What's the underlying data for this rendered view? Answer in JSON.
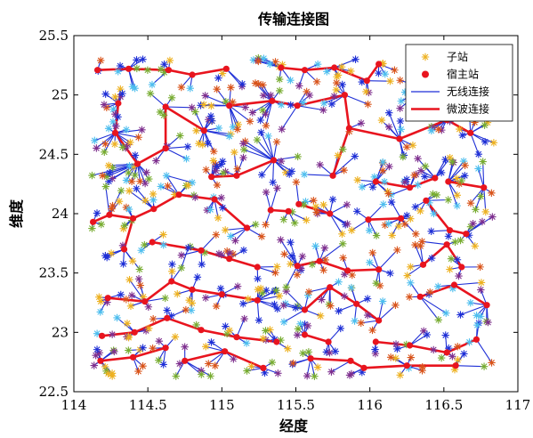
{
  "chart_data": {
    "type": "scatter",
    "title": "传输连接图",
    "xlabel": "经度",
    "ylabel": "维度",
    "xlim": [
      114,
      117
    ],
    "ylim": [
      22.5,
      25.5
    ],
    "xticks": [
      114,
      114.5,
      115,
      115.5,
      116,
      116.5,
      117
    ],
    "xtick_labels": [
      "114",
      "114.5",
      "115",
      "115.5",
      "116",
      "116.5",
      "117"
    ],
    "yticks": [
      22.5,
      23,
      23.5,
      24,
      24.5,
      25,
      25.5
    ],
    "ytick_labels": [
      "22.5",
      "23",
      "23.5",
      "24",
      "24.5",
      "25",
      "25.5"
    ],
    "legend": {
      "placement": "top-right",
      "entries": [
        {
          "label": "子站",
          "marker": "asterisk",
          "color": "#EDB120"
        },
        {
          "label": "宿主站",
          "marker": "dot",
          "color": "#E8141E"
        },
        {
          "label": "无线连接",
          "marker": "line",
          "color": "#1E2FD6"
        },
        {
          "label": "微波连接",
          "marker": "line",
          "color": "#E8141E"
        }
      ]
    },
    "colors": {
      "substation_palette": [
        "#EDB120",
        "#1E2FD6",
        "#7E2F8E",
        "#77AC30",
        "#4DBEEE",
        "#D95319"
      ],
      "host": "#E8141E",
      "wireless": "#1E2FD6",
      "microwave": "#E8141E"
    },
    "series": [
      {
        "name": "宿主站",
        "points": [
          [
            114.16,
            25.21
          ],
          [
            114.37,
            25.22
          ],
          [
            114.64,
            25.21
          ],
          [
            114.8,
            25.17
          ],
          [
            115.03,
            25.22
          ],
          [
            115.4,
            25.23
          ],
          [
            115.56,
            25.21
          ],
          [
            115.76,
            25.23
          ],
          [
            115.98,
            25.12
          ],
          [
            116.06,
            25.26
          ],
          [
            116.37,
            25.06
          ],
          [
            116.64,
            25.16
          ],
          [
            114.3,
            24.93
          ],
          [
            114.62,
            24.9
          ],
          [
            114.88,
            24.7
          ],
          [
            115.05,
            24.91
          ],
          [
            115.34,
            24.95
          ],
          [
            115.51,
            24.91
          ],
          [
            115.83,
            25.0
          ],
          [
            115.86,
            24.72
          ],
          [
            116.2,
            24.63
          ],
          [
            116.52,
            24.79
          ],
          [
            116.68,
            24.68
          ],
          [
            114.28,
            24.68
          ],
          [
            114.43,
            24.42
          ],
          [
            114.62,
            24.55
          ],
          [
            114.93,
            24.31
          ],
          [
            115.1,
            24.32
          ],
          [
            115.35,
            24.45
          ],
          [
            115.75,
            24.32
          ],
          [
            116.04,
            24.27
          ],
          [
            116.27,
            24.22
          ],
          [
            116.44,
            24.3
          ],
          [
            116.53,
            24.27
          ],
          [
            116.77,
            24.22
          ],
          [
            114.13,
            23.93
          ],
          [
            114.24,
            23.99
          ],
          [
            114.4,
            23.96
          ],
          [
            114.54,
            24.04
          ],
          [
            114.71,
            24.16
          ],
          [
            114.95,
            24.12
          ],
          [
            115.17,
            23.88
          ],
          [
            115.33,
            24.03
          ],
          [
            115.45,
            24.02
          ],
          [
            115.52,
            24.08
          ],
          [
            115.73,
            24.0
          ],
          [
            115.99,
            23.95
          ],
          [
            116.21,
            23.96
          ],
          [
            116.38,
            24.11
          ],
          [
            116.54,
            23.86
          ],
          [
            116.65,
            23.83
          ],
          [
            114.34,
            23.7
          ],
          [
            114.53,
            23.76
          ],
          [
            114.86,
            23.69
          ],
          [
            115.05,
            23.62
          ],
          [
            115.24,
            23.55
          ],
          [
            115.51,
            23.56
          ],
          [
            115.66,
            23.6
          ],
          [
            115.85,
            23.52
          ],
          [
            116.06,
            23.53
          ],
          [
            116.36,
            23.57
          ],
          [
            116.52,
            23.74
          ],
          [
            116.62,
            23.55
          ],
          [
            114.23,
            23.29
          ],
          [
            114.48,
            23.26
          ],
          [
            114.66,
            23.43
          ],
          [
            114.8,
            23.36
          ],
          [
            115.0,
            23.32
          ],
          [
            115.24,
            23.27
          ],
          [
            115.56,
            23.19
          ],
          [
            115.73,
            23.38
          ],
          [
            115.91,
            23.24
          ],
          [
            116.06,
            23.1
          ],
          [
            116.34,
            23.3
          ],
          [
            116.57,
            23.4
          ],
          [
            116.79,
            23.23
          ],
          [
            114.19,
            22.97
          ],
          [
            114.41,
            23.0
          ],
          [
            114.63,
            23.12
          ],
          [
            114.86,
            23.02
          ],
          [
            115.1,
            22.96
          ],
          [
            115.37,
            22.92
          ],
          [
            115.56,
            22.98
          ],
          [
            115.72,
            22.92
          ],
          [
            116.04,
            22.92
          ],
          [
            116.27,
            22.89
          ],
          [
            116.52,
            22.83
          ],
          [
            116.72,
            22.94
          ],
          [
            114.18,
            22.76
          ],
          [
            114.4,
            22.79
          ],
          [
            114.62,
            22.87
          ],
          [
            114.75,
            22.76
          ],
          [
            115.02,
            22.84
          ],
          [
            115.28,
            22.7
          ],
          [
            115.6,
            22.78
          ],
          [
            115.87,
            22.76
          ],
          [
            115.96,
            22.7
          ],
          [
            116.25,
            22.72
          ],
          [
            116.58,
            22.72
          ]
        ]
      }
    ],
    "microwave_links": [
      [
        114.16,
        25.21,
        114.37,
        25.22
      ],
      [
        114.37,
        25.22,
        114.64,
        25.21
      ],
      [
        114.64,
        25.21,
        114.8,
        25.17
      ],
      [
        114.8,
        25.17,
        115.03,
        25.22
      ],
      [
        115.4,
        25.23,
        115.56,
        25.21
      ],
      [
        115.56,
        25.21,
        115.76,
        25.23
      ],
      [
        115.76,
        25.23,
        115.98,
        25.12
      ],
      [
        115.98,
        25.12,
        116.06,
        25.26
      ],
      [
        116.37,
        25.06,
        116.64,
        25.16
      ],
      [
        114.3,
        24.93,
        114.28,
        24.68
      ],
      [
        114.28,
        24.68,
        114.43,
        24.42
      ],
      [
        114.62,
        24.9,
        114.88,
        24.7
      ],
      [
        114.62,
        24.9,
        114.62,
        24.55
      ],
      [
        115.05,
        24.91,
        115.34,
        24.95
      ],
      [
        115.34,
        24.95,
        115.51,
        24.91
      ],
      [
        115.51,
        24.91,
        115.83,
        25.0
      ],
      [
        115.83,
        25.0,
        115.86,
        24.72
      ],
      [
        115.86,
        24.72,
        116.2,
        24.63
      ],
      [
        116.2,
        24.63,
        116.52,
        24.79
      ],
      [
        116.52,
        24.79,
        116.68,
        24.68
      ],
      [
        114.43,
        24.42,
        114.62,
        24.55
      ],
      [
        114.93,
        24.31,
        115.1,
        24.32
      ],
      [
        115.1,
        24.32,
        115.35,
        24.45
      ],
      [
        115.75,
        24.32,
        115.86,
        24.72
      ],
      [
        116.04,
        24.27,
        116.27,
        24.22
      ],
      [
        116.27,
        24.22,
        116.44,
        24.3
      ],
      [
        116.53,
        24.27,
        116.77,
        24.22
      ],
      [
        114.13,
        23.93,
        114.24,
        23.99
      ],
      [
        114.24,
        23.99,
        114.4,
        23.96
      ],
      [
        114.4,
        23.96,
        114.54,
        24.04
      ],
      [
        114.54,
        24.04,
        114.71,
        24.16
      ],
      [
        114.71,
        24.16,
        114.95,
        24.12
      ],
      [
        114.95,
        24.12,
        115.17,
        23.88
      ],
      [
        115.33,
        24.03,
        115.45,
        24.02
      ],
      [
        115.52,
        24.08,
        115.73,
        24.0
      ],
      [
        115.99,
        23.95,
        116.21,
        23.96
      ],
      [
        116.38,
        24.11,
        116.54,
        23.86
      ],
      [
        116.54,
        23.86,
        116.65,
        23.83
      ],
      [
        114.4,
        23.96,
        114.34,
        23.7
      ],
      [
        114.53,
        23.76,
        114.86,
        23.69
      ],
      [
        114.86,
        23.69,
        115.05,
        23.62
      ],
      [
        115.05,
        23.62,
        115.24,
        23.55
      ],
      [
        115.51,
        23.56,
        115.66,
        23.6
      ],
      [
        115.66,
        23.6,
        115.85,
        23.52
      ],
      [
        115.85,
        23.52,
        116.06,
        23.53
      ],
      [
        116.36,
        23.57,
        116.52,
        23.74
      ],
      [
        116.52,
        23.74,
        116.62,
        23.55
      ],
      [
        114.23,
        23.29,
        114.48,
        23.26
      ],
      [
        114.48,
        23.26,
        114.66,
        23.43
      ],
      [
        114.66,
        23.43,
        114.8,
        23.36
      ],
      [
        114.8,
        23.36,
        115.0,
        23.32
      ],
      [
        115.0,
        23.32,
        115.24,
        23.27
      ],
      [
        115.56,
        23.19,
        115.73,
        23.38
      ],
      [
        115.73,
        23.38,
        115.91,
        23.24
      ],
      [
        115.91,
        23.24,
        116.06,
        23.1
      ],
      [
        116.34,
        23.3,
        116.57,
        23.4
      ],
      [
        116.57,
        23.4,
        116.79,
        23.23
      ],
      [
        114.19,
        22.97,
        114.41,
        23.0
      ],
      [
        114.41,
        23.0,
        114.63,
        23.12
      ],
      [
        114.63,
        23.12,
        114.86,
        23.02
      ],
      [
        114.86,
        23.02,
        115.1,
        22.96
      ],
      [
        115.1,
        22.96,
        115.37,
        22.92
      ],
      [
        115.56,
        22.98,
        115.72,
        22.92
      ],
      [
        116.04,
        22.92,
        116.27,
        22.89
      ],
      [
        116.27,
        22.89,
        116.52,
        22.83
      ],
      [
        116.52,
        22.83,
        116.72,
        22.94
      ],
      [
        114.18,
        22.76,
        114.4,
        22.79
      ],
      [
        114.4,
        22.79,
        114.62,
        22.87
      ],
      [
        114.75,
        22.76,
        115.02,
        22.84
      ],
      [
        115.02,
        22.84,
        115.28,
        22.7
      ],
      [
        115.6,
        22.78,
        115.87,
        22.76
      ],
      [
        115.87,
        22.76,
        115.96,
        22.7
      ],
      [
        115.96,
        22.7,
        116.25,
        22.72
      ],
      [
        116.25,
        22.72,
        116.58,
        22.72
      ]
    ],
    "substation_count": 640,
    "grid": false
  }
}
